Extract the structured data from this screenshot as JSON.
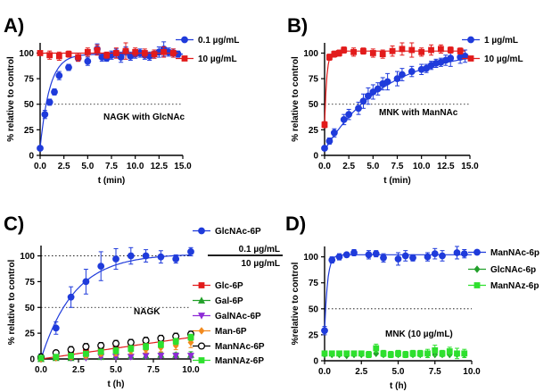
{
  "chart_data": [
    {
      "panel": "A)",
      "type": "scatter",
      "xlabel": "t (min)",
      "ylabel": "% relative to control",
      "xlim": [
        0,
        15
      ],
      "ylim": [
        0,
        110
      ],
      "xticks": [
        "0.0",
        "2.5",
        "5.0",
        "7.5",
        "10.0",
        "12.5",
        "15.0"
      ],
      "yticks": [
        "0",
        "25",
        "50",
        "75",
        "100"
      ],
      "xtick_values": [
        0,
        2.5,
        5,
        7.5,
        10,
        12.5,
        15
      ],
      "ytick_values": [
        0,
        25,
        50,
        75,
        100
      ],
      "legend_position": "top-right",
      "annotation": "NAGK with  GlcNAc",
      "reference_line": 50,
      "series": [
        {
          "name": "0.1 µg/mL",
          "color": "#1f3bdb",
          "marker": "circle",
          "x": [
            0,
            0.5,
            1,
            1.5,
            2,
            3,
            4,
            5,
            6,
            6.5,
            7,
            7.5,
            8,
            8.5,
            9,
            9.5,
            10,
            10.5,
            11,
            11.5,
            12,
            12.5,
            13,
            13.5,
            14,
            14.5
          ],
          "y": [
            7,
            40,
            52,
            62,
            78,
            86,
            95,
            92,
            104,
            96,
            95,
            98,
            100,
            96,
            102,
            97,
            99,
            100,
            98,
            97,
            99,
            101,
            104,
            101,
            100,
            99
          ],
          "err": [
            1,
            4,
            3,
            3,
            4,
            3,
            3,
            4,
            5,
            4,
            3,
            4,
            4,
            5,
            4,
            4,
            4,
            4,
            4,
            4,
            4,
            5,
            7,
            4,
            4,
            3
          ],
          "fit": {
            "kind": "one_phase",
            "y0": 7,
            "plateau": 99,
            "k": 1.0
          }
        },
        {
          "name": "10 µg/mL",
          "color": "#e21b1b",
          "marker": "square",
          "x": [
            0,
            1,
            2,
            3,
            4,
            5,
            6,
            7,
            8,
            9,
            10,
            11,
            12,
            13,
            14
          ],
          "y": [
            100,
            98,
            97,
            99,
            96,
            101,
            103,
            98,
            100,
            102,
            101,
            100,
            99,
            101,
            100
          ],
          "err": [
            2,
            4,
            4,
            3,
            4,
            4,
            5,
            3,
            5,
            8,
            4,
            4,
            4,
            5,
            4
          ],
          "fit": {
            "kind": "one_phase",
            "y0": 99,
            "plateau": 100,
            "k": 5
          }
        }
      ]
    },
    {
      "panel": "B)",
      "type": "scatter",
      "xlabel": "t (min)",
      "ylabel": "% relative to control",
      "xlim": [
        0,
        15
      ],
      "ylim": [
        0,
        110
      ],
      "xticks": [
        "0.0",
        "2.5",
        "5.0",
        "7.5",
        "10.0",
        "12.5",
        "15.0"
      ],
      "yticks": [
        "0",
        "25",
        "50",
        "75",
        "100"
      ],
      "xtick_values": [
        0,
        2.5,
        5,
        7.5,
        10,
        12.5,
        15
      ],
      "ytick_values": [
        0,
        25,
        50,
        75,
        100
      ],
      "legend_position": "top-right",
      "annotation": "MNK with  ManNAc",
      "reference_line": 50,
      "series": [
        {
          "name": "1 µg/mL",
          "color": "#1f3bdb",
          "marker": "circle",
          "x": [
            0,
            0.5,
            1,
            2,
            2.5,
            3.5,
            4,
            4.5,
            5,
            5.5,
            6,
            6.5,
            7.5,
            8,
            9,
            10,
            10.5,
            11,
            11.5,
            12,
            12.5,
            13,
            14,
            14.5
          ],
          "y": [
            7,
            14,
            22,
            35,
            40,
            46,
            53,
            58,
            62,
            65,
            70,
            72,
            75,
            79,
            82,
            84,
            85,
            88,
            90,
            91,
            93,
            95,
            96,
            97
          ],
          "err": [
            2,
            3,
            4,
            5,
            5,
            6,
            7,
            8,
            7,
            6,
            6,
            8,
            7,
            6,
            5,
            5,
            4,
            4,
            4,
            4,
            5,
            8,
            6,
            6
          ],
          "fit": {
            "kind": "one_phase",
            "y0": 5,
            "plateau": 104,
            "k": 0.16
          }
        },
        {
          "name": "10 µg/mL",
          "color": "#e21b1b",
          "marker": "square",
          "x": [
            0,
            0.5,
            1,
            1.5,
            2,
            3,
            4,
            5,
            6,
            7,
            8,
            9,
            10,
            11,
            12,
            13,
            14
          ],
          "y": [
            30,
            96,
            99,
            100,
            103,
            101,
            102,
            100,
            99,
            102,
            104,
            103,
            101,
            103,
            104,
            103,
            102
          ],
          "err": [
            3,
            3,
            3,
            3,
            3,
            4,
            3,
            4,
            4,
            5,
            6,
            7,
            4,
            5,
            4,
            3,
            3
          ],
          "fit": {
            "kind": "one_phase",
            "y0": 30,
            "plateau": 102,
            "k": 4.5
          }
        }
      ]
    },
    {
      "panel": "C)",
      "type": "scatter",
      "xlabel": "t (h)",
      "ylabel": "% relative to control",
      "xlim": [
        0,
        10
      ],
      "ylim": [
        0,
        110
      ],
      "xticks": [
        "0.0",
        "2.5",
        "5.0",
        "7.5",
        "10.0"
      ],
      "yticks": [
        "0",
        "25",
        "50",
        "75",
        "100"
      ],
      "xtick_values": [
        0,
        2.5,
        5,
        7.5,
        10
      ],
      "ytick_values": [
        0,
        25,
        50,
        75,
        100
      ],
      "legend_position": "right",
      "legend_group_labels": [
        "0.1 µg/mL",
        "10 µg/mL"
      ],
      "annotation": "NAGK",
      "reference_lines": [
        100,
        50
      ],
      "series": [
        {
          "name": "GlcNAc-6P",
          "color": "#1f3bdb",
          "marker": "circle",
          "x": [
            0,
            1,
            2,
            3,
            4,
            5,
            6,
            7,
            8,
            9,
            10
          ],
          "y": [
            2,
            30,
            60,
            75,
            90,
            97,
            100,
            100,
            99,
            97,
            104
          ],
          "err": [
            3,
            6,
            10,
            12,
            14,
            10,
            8,
            6,
            6,
            4,
            4
          ],
          "fit": {
            "kind": "one_phase",
            "y0": 0,
            "plateau": 102,
            "k": 0.45
          }
        },
        {
          "name": "Glc-6P",
          "color": "#e21b1b",
          "marker": "square",
          "x": [
            0,
            1,
            2,
            3,
            4,
            5,
            6,
            7,
            8,
            9,
            10
          ],
          "y": [
            1,
            3,
            5,
            7,
            8,
            11,
            13,
            15,
            18,
            20,
            21
          ],
          "err": [
            1,
            2,
            2,
            2,
            3,
            3,
            3,
            3,
            3,
            3,
            3
          ],
          "fit": {
            "kind": "linear",
            "slope": 2.1,
            "intercept": 0
          }
        },
        {
          "name": "Gal-6P",
          "color": "#22a02a",
          "marker": "triangle-up",
          "x": [
            0,
            1,
            2,
            3,
            4,
            5,
            6,
            7,
            8,
            9,
            10
          ],
          "y": [
            0,
            1,
            1,
            2,
            2,
            3,
            3,
            3,
            4,
            4,
            4
          ],
          "err": [
            1,
            1,
            1,
            2,
            2,
            2,
            2,
            2,
            2,
            2,
            3
          ]
        },
        {
          "name": "GalNAc-6P",
          "color": "#8e2bd6",
          "marker": "triangle-down",
          "x": [
            0,
            1,
            2,
            3,
            4,
            5,
            6,
            7,
            8,
            9,
            10
          ],
          "y": [
            0,
            1,
            1,
            1,
            2,
            2,
            2,
            3,
            3,
            3,
            3
          ],
          "err": [
            1,
            1,
            1,
            1,
            1,
            1,
            2,
            2,
            2,
            2,
            2
          ]
        },
        {
          "name": "Man-6P",
          "color": "#f28a1e",
          "marker": "diamond",
          "x": [
            0,
            1,
            2,
            3,
            4,
            5,
            6,
            7,
            8,
            9,
            10
          ],
          "y": [
            0,
            1,
            2,
            3,
            5,
            6,
            8,
            9,
            11,
            13,
            16
          ],
          "err": [
            1,
            1,
            2,
            2,
            2,
            3,
            3,
            3,
            4,
            4,
            5
          ]
        },
        {
          "name": "ManNAc-6P",
          "color": "#000000",
          "marker": "circle-open",
          "x": [
            0,
            1,
            2,
            3,
            4,
            5,
            6,
            7,
            8,
            9,
            10
          ],
          "y": [
            2,
            6,
            9,
            12,
            13,
            15,
            16,
            18,
            20,
            22,
            24
          ],
          "err": [
            2,
            2,
            3,
            3,
            3,
            3,
            3,
            3,
            3,
            3,
            3
          ]
        },
        {
          "name": "ManNAz-6P",
          "color": "#2ee02e",
          "marker": "square",
          "x": [
            0,
            1,
            2,
            3,
            4,
            5,
            6,
            7,
            8,
            9,
            10
          ],
          "y": [
            1,
            2,
            3,
            5,
            7,
            8,
            10,
            12,
            14,
            17,
            21
          ],
          "err": [
            1,
            1,
            2,
            2,
            2,
            3,
            3,
            3,
            3,
            3,
            3
          ]
        }
      ]
    },
    {
      "panel": "D)",
      "type": "scatter",
      "xlabel": "t (h)",
      "ylabel": "%relative to control",
      "xlim": [
        0,
        10
      ],
      "ylim": [
        0,
        110
      ],
      "xticks": [
        "0.0",
        "2.5",
        "5.0",
        "7.5",
        "10.0"
      ],
      "yticks": [
        "0",
        "25",
        "50",
        "75",
        "100"
      ],
      "xtick_values": [
        0,
        2.5,
        5,
        7.5,
        10
      ],
      "ytick_values": [
        0,
        25,
        50,
        75,
        100
      ],
      "legend_position": "right",
      "annotation": "MNK (10 µg/mL)",
      "reference_line": 50,
      "series": [
        {
          "name": "ManNAc-6p",
          "color": "#1f3bdb",
          "marker": "circle",
          "x": [
            0,
            0.5,
            1,
            1.5,
            2,
            3,
            3.5,
            4,
            5,
            5.5,
            6,
            7,
            7.5,
            8,
            9,
            9.5
          ],
          "y": [
            29,
            97,
            100,
            102,
            104,
            102,
            103,
            99,
            98,
            101,
            99,
            100,
            103,
            101,
            104,
            103
          ],
          "err": [
            4,
            3,
            3,
            2,
            3,
            4,
            3,
            4,
            6,
            5,
            3,
            4,
            5,
            5,
            6,
            4
          ],
          "fit": {
            "kind": "one_phase",
            "y0": 29,
            "plateau": 102,
            "k": 5
          }
        },
        {
          "name": "GlcNAc-6p",
          "color": "#22a02a",
          "marker": "diamond",
          "x": [
            0,
            0.5,
            1,
            1.5,
            2,
            2.5,
            3,
            3.5,
            4,
            4.5,
            5,
            5.5,
            6,
            6.5,
            7,
            7.5,
            8,
            8.5,
            9,
            9.5
          ],
          "y": [
            6,
            6,
            6,
            5,
            6,
            6,
            6,
            7,
            6,
            6,
            6,
            6,
            6,
            6,
            6,
            6,
            6,
            6,
            6,
            6
          ],
          "err": [
            1,
            1,
            1,
            1,
            1,
            1,
            1,
            1,
            1,
            1,
            1,
            1,
            1,
            1,
            1,
            1,
            1,
            1,
            1,
            1
          ]
        },
        {
          "name": "ManNAz-6p",
          "color": "#2ee02e",
          "marker": "square",
          "x": [
            0,
            0.5,
            1,
            1.5,
            2,
            2.5,
            3,
            3.5,
            4,
            4.5,
            5,
            5.5,
            6,
            6.5,
            7,
            7.5,
            8,
            8.5,
            9,
            9.5
          ],
          "y": [
            7,
            7,
            7,
            7,
            7,
            7,
            6,
            12,
            7,
            6,
            7,
            6,
            7,
            7,
            7,
            10,
            7,
            9,
            7,
            7
          ],
          "err": [
            2,
            2,
            2,
            2,
            2,
            2,
            3,
            4,
            3,
            3,
            3,
            3,
            3,
            3,
            4,
            5,
            3,
            4,
            5,
            4
          ]
        }
      ]
    }
  ]
}
